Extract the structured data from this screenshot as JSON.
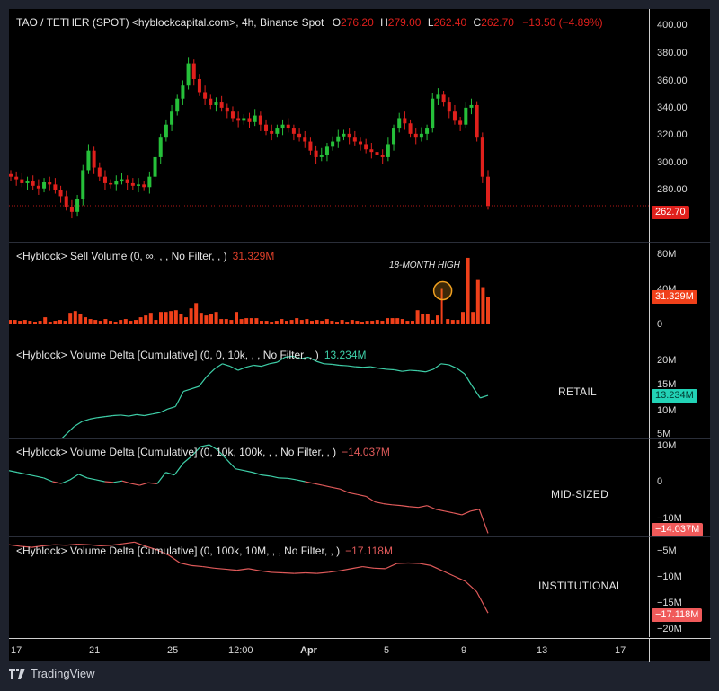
{
  "header": {
    "symbol": "TAO / TETHER (SPOT) <hyblockcapital.com>, 4h, Binance Spot",
    "o_label": "O",
    "o_value": "276.20",
    "h_label": "H",
    "h_value": "279.00",
    "l_label": "L",
    "l_value": "262.40",
    "c_label": "C",
    "c_value": "262.70",
    "change": "−13.50 (−4.89%)"
  },
  "colors": {
    "up": "#26c03a",
    "down": "#e0201c",
    "sell_volume": "#f0401a",
    "retail_line": "#3ecfa8",
    "negative_line": "#e05a5a",
    "annotation_circle": "#f0a020",
    "price_badge": "#e0201c",
    "retail_badge": "#22d3b6",
    "neg_badge": "#f05a5a"
  },
  "panes": {
    "price": {
      "ticks": [
        "400.00",
        "380.00",
        "360.00",
        "340.00",
        "320.00",
        "300.00",
        "280.00"
      ],
      "last_price": "262.70"
    },
    "sell_volume": {
      "legend": "<Hyblock> Sell Volume (0, ∞, , , No Filter, , )",
      "value": "31.329M",
      "ticks": [
        "80M",
        "40M",
        "0"
      ],
      "badge": "31.329M",
      "annotation": "18-MONTH HIGH"
    },
    "retail": {
      "legend": "<Hyblock> Volume Delta [Cumulative] (0, 0, 10k, , , No Filter, , )",
      "value": "13.234M",
      "ticks": [
        "20M",
        "15M",
        "10M",
        "5M"
      ],
      "badge": "13.234M",
      "label": "RETAIL"
    },
    "mid": {
      "legend": "<Hyblock> Volume Delta [Cumulative] (0, 10k, 100k, , , No Filter, , )",
      "value": "−14.037M",
      "ticks": [
        "10M",
        "0",
        "−10M"
      ],
      "badge": "−14.037M",
      "label": "MID-SIZED"
    },
    "institutional": {
      "legend": "<Hyblock> Volume Delta [Cumulative] (0, 100k, 10M, , , No Filter, , )",
      "value": "−17.118M",
      "ticks": [
        "−5M",
        "−10M",
        "−15M",
        "−20M"
      ],
      "badge": "−17.118M",
      "label": "INSTITUTIONAL"
    }
  },
  "time_axis": [
    "17",
    "21",
    "25",
    "12:00",
    "Apr",
    "5",
    "9",
    "13",
    "17"
  ],
  "footer": {
    "brand": "TradingView"
  },
  "chart_data": [
    {
      "type": "candlestick",
      "title": "TAO / TETHER (SPOT), 4h, Binance Spot",
      "ylim": [
        250,
        405
      ],
      "yticks": [
        280,
        300,
        320,
        340,
        360,
        380,
        400
      ],
      "x_ticks": [
        "17",
        "21",
        "25",
        "12:00",
        "Apr",
        "5",
        "9",
        "13",
        "17"
      ],
      "ohlc_last": {
        "open": 276.2,
        "high": 279.0,
        "low": 262.4,
        "close": 262.7,
        "change": -13.5,
        "change_pct": -4.89
      },
      "approx_path_close": [
        285,
        283,
        280,
        282,
        278,
        276,
        281,
        279,
        275,
        270,
        262,
        258,
        268,
        290,
        305,
        292,
        285,
        280,
        279,
        282,
        283,
        280,
        278,
        279,
        277,
        285,
        300,
        315,
        325,
        335,
        345,
        355,
        372,
        360,
        350,
        345,
        340,
        342,
        338,
        335,
        330,
        328,
        330,
        327,
        332,
        325,
        320,
        318,
        322,
        325,
        322,
        318,
        315,
        312,
        305,
        300,
        302,
        308,
        312,
        316,
        318,
        315,
        312,
        310,
        306,
        304,
        302,
        300,
        310,
        322,
        330,
        326,
        318,
        315,
        318,
        322,
        345,
        348,
        342,
        335,
        328,
        325,
        338,
        340,
        315,
        285,
        262.7
      ],
      "last_price": 262.7
    },
    {
      "type": "bar",
      "title": "Sell Volume",
      "ylim": [
        0,
        85
      ],
      "yticks": [
        0,
        40,
        80
      ],
      "unit": "M",
      "annotation": {
        "text": "18-MONTH HIGH",
        "approx_value": 40
      },
      "last_value": 31.329,
      "approx_values": [
        5,
        5,
        4,
        5,
        4,
        3,
        4,
        8,
        3,
        4,
        5,
        4,
        13,
        15,
        12,
        8,
        6,
        5,
        4,
        6,
        4,
        3,
        5,
        6,
        4,
        5,
        8,
        10,
        13,
        5,
        14,
        14,
        15,
        16,
        12,
        8,
        18,
        24,
        13,
        10,
        12,
        14,
        6,
        6,
        5,
        14,
        6,
        7,
        7,
        7,
        4,
        4,
        3,
        4,
        6,
        4,
        5,
        7,
        5,
        6,
        4,
        5,
        4,
        6,
        4,
        3,
        5,
        3,
        5,
        4,
        3,
        4,
        4,
        5,
        4,
        7,
        7,
        7,
        6,
        4,
        4,
        16,
        12,
        12,
        5,
        10,
        40,
        6,
        5,
        5,
        14,
        75,
        14,
        50,
        42,
        31.3
      ]
    },
    {
      "type": "line",
      "title": "Volume Delta [Cumulative] RETAIL (0-10k)",
      "ylim": [
        4,
        23
      ],
      "yticks": [
        5,
        10,
        15,
        20
      ],
      "unit": "M",
      "last_value": 13.234,
      "approx_values": [
        4,
        5.5,
        7,
        8,
        8.5,
        8.8,
        9,
        9.2,
        9.3,
        9.1,
        9.4,
        9.2,
        9.5,
        9.8,
        10.5,
        11,
        14,
        14.5,
        15,
        17,
        18.5,
        19.5,
        19,
        18.2,
        18.8,
        19.2,
        19,
        19.5,
        19.8,
        20.8,
        21,
        20.5,
        20.8,
        20,
        19.5,
        19.4,
        19.2,
        19.1,
        18.9,
        18.8,
        18.9,
        18.6,
        18.4,
        18.3,
        18,
        18.2,
        18.1,
        17.9,
        18.4,
        19.5,
        19.3,
        18.6,
        17.5,
        15,
        12.7,
        13.2
      ]
    },
    {
      "type": "line",
      "title": "Volume Delta [Cumulative] MID-SIZED (10k-100k)",
      "ylim": [
        -16,
        11
      ],
      "yticks": [
        -10,
        0,
        10
      ],
      "unit": "M",
      "last_value": -14.037,
      "approx_values": [
        3,
        2.5,
        2,
        1.5,
        1,
        0,
        -0.5,
        0.5,
        2,
        1,
        0.5,
        0,
        -0.2,
        0.2,
        -0.5,
        -1,
        -0.3,
        -0.6,
        2.5,
        1.8,
        5,
        7,
        9.5,
        10,
        8.5,
        6,
        3.5,
        3,
        2.5,
        1.8,
        1.5,
        1,
        0.9,
        0.5,
        0,
        -0.5,
        -1,
        -1.5,
        -2,
        -3,
        -3.5,
        -4,
        -5.5,
        -6,
        -6.3,
        -6.5,
        -6.8,
        -7,
        -6.5,
        -7.5,
        -8,
        -8.5,
        -9,
        -8,
        -7.5,
        -14
      ]
    },
    {
      "type": "line",
      "title": "Volume Delta [Cumulative] INSTITUTIONAL (100k-10M)",
      "ylim": [
        -21,
        -4
      ],
      "yticks": [
        -5,
        -10,
        -15,
        -20
      ],
      "unit": "M",
      "last_value": -17.118,
      "approx_values": [
        -4,
        -4.3,
        -4.5,
        -4.2,
        -4,
        -4.1,
        -3.9,
        -4,
        -4.2,
        -4.1,
        -3.8,
        -3.5,
        -4.3,
        -5,
        -6,
        -7.5,
        -8,
        -8.2,
        -8.5,
        -8.7,
        -8.9,
        -8.6,
        -9,
        -9.3,
        -9.4,
        -9.5,
        -9.4,
        -9.5,
        -9.3,
        -9,
        -8.6,
        -8.2,
        -8.5,
        -8.6,
        -7.6,
        -7.5,
        -7.6,
        -8,
        -9,
        -10,
        -11,
        -13,
        -17.1
      ]
    }
  ]
}
